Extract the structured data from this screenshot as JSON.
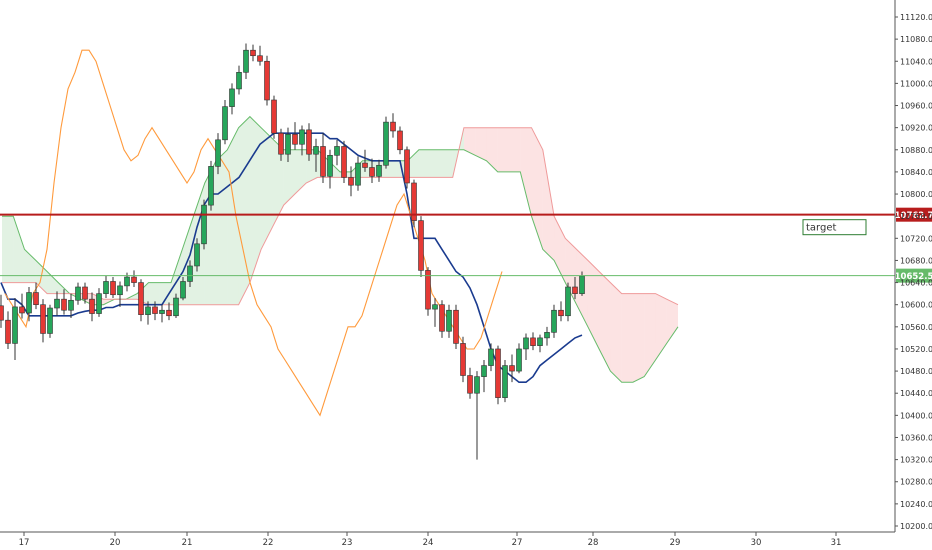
{
  "chart_data": {
    "type": "candlestick",
    "title": "",
    "xlabel": "",
    "ylabel": "",
    "ylim": [
      10180,
      11140
    ],
    "x_tick_labels": [
      "17",
      "20",
      "21",
      "22",
      "23",
      "24",
      "27",
      "28",
      "29",
      "30",
      "31"
    ],
    "y_tick_values": [
      10200,
      10240,
      10280,
      10320,
      10360,
      10400,
      10440,
      10480,
      10520,
      10560,
      10600,
      10640,
      10680,
      10720,
      10760,
      10800,
      10840,
      10880,
      10920,
      10960,
      11000,
      11040,
      11080,
      11120
    ],
    "y_tick_labels": [
      "10200.0",
      "10240.0",
      "10280.0",
      "10320.0",
      "10360.0",
      "10400.0",
      "10440.0",
      "10480.0",
      "10520.0",
      "10560.0",
      "10600.0",
      "10640.0",
      "10680.0",
      "10720.0",
      "10760.0",
      "10800.0",
      "10840.0",
      "10880.0",
      "10920.0",
      "10960.0",
      "11000.0",
      "11040.0",
      "11080.0",
      "11120.0"
    ],
    "grid": false,
    "horizontal_lines": [
      {
        "label": "10762.7",
        "value": 10762.7,
        "color": "#b71c1c"
      },
      {
        "label": "10652.5",
        "value": 10652.5,
        "color": "#66bb6a"
      }
    ],
    "annotations": [
      {
        "text": "target",
        "price": 10741
      }
    ],
    "ohlc": [
      [
        "17:00",
        10598,
        10618,
        10558,
        10572
      ],
      [
        "17:04",
        10572,
        10588,
        10520,
        10530
      ],
      [
        "17:08",
        10530,
        10612,
        10500,
        10596
      ],
      [
        "17:12",
        10596,
        10620,
        10575,
        10585
      ],
      [
        "17:16",
        10585,
        10632,
        10570,
        10622
      ],
      [
        "17:20",
        10622,
        10640,
        10592,
        10600
      ],
      [
        "17:24",
        10600,
        10610,
        10532,
        10548
      ],
      [
        "17:28",
        10548,
        10600,
        10540,
        10594
      ],
      [
        "17:32",
        10594,
        10624,
        10580,
        10610
      ],
      [
        "17:36",
        10610,
        10628,
        10582,
        10590
      ],
      [
        "17:40",
        10590,
        10620,
        10576,
        10608
      ],
      [
        "17:44",
        10608,
        10640,
        10600,
        10632
      ],
      [
        "17:48",
        10632,
        10640,
        10602,
        10610
      ],
      [
        "17:52",
        10610,
        10622,
        10570,
        10584
      ],
      [
        "17:56",
        10584,
        10630,
        10578,
        10620
      ],
      [
        "18:00",
        10620,
        10652,
        10612,
        10642
      ],
      [
        "18:04",
        10642,
        10650,
        10612,
        10618
      ],
      [
        "18:08",
        10618,
        10642,
        10596,
        10634
      ],
      [
        "18:12",
        10634,
        10658,
        10624,
        10650
      ],
      [
        "18:16",
        10650,
        10662,
        10632,
        10640
      ],
      [
        "18:20",
        10640,
        10646,
        10570,
        10582
      ],
      [
        "18:24",
        10582,
        10606,
        10564,
        10596
      ],
      [
        "18:28",
        10596,
        10606,
        10572,
        10584
      ],
      [
        "18:32",
        10584,
        10600,
        10568,
        10590
      ],
      [
        "18:36",
        10590,
        10604,
        10572,
        10580
      ],
      [
        "18:40",
        10580,
        10620,
        10576,
        10612
      ],
      [
        "18:44",
        10612,
        10650,
        10608,
        10642
      ],
      [
        "18:48",
        10642,
        10680,
        10632,
        10670
      ],
      [
        "18:52",
        10670,
        10720,
        10660,
        10710
      ],
      [
        "18:56",
        10710,
        10790,
        10700,
        10780
      ],
      [
        "19:00",
        10780,
        10860,
        10770,
        10850
      ],
      [
        "19:04",
        10850,
        10910,
        10836,
        10898
      ],
      [
        "19:08",
        10898,
        10970,
        10890,
        10958
      ],
      [
        "19:12",
        10958,
        11000,
        10944,
        10990
      ],
      [
        "19:16",
        10990,
        11032,
        10980,
        11020
      ],
      [
        "19:20",
        11020,
        11072,
        11008,
        11060
      ],
      [
        "19:24",
        11060,
        11070,
        11040,
        11050
      ],
      [
        "19:28",
        11050,
        11068,
        11032,
        11040
      ],
      [
        "19:32",
        11040,
        11050,
        10960,
        10970
      ],
      [
        "19:36",
        10970,
        10978,
        10900,
        10910
      ],
      [
        "19:40",
        10910,
        10918,
        10860,
        10872
      ],
      [
        "19:44",
        10872,
        10920,
        10858,
        10908
      ],
      [
        "19:48",
        10908,
        10930,
        10880,
        10890
      ],
      [
        "19:52",
        10890,
        10924,
        10870,
        10916
      ],
      [
        "19:56",
        10916,
        10928,
        10860,
        10872
      ],
      [
        "20:00",
        10872,
        10900,
        10840,
        10886
      ],
      [
        "20:04",
        10886,
        10910,
        10820,
        10832
      ],
      [
        "20:08",
        10832,
        10880,
        10810,
        10870
      ],
      [
        "20:12",
        10870,
        10898,
        10852,
        10886
      ],
      [
        "20:16",
        10886,
        10896,
        10820,
        10830
      ],
      [
        "20:20",
        10830,
        10850,
        10796,
        10816
      ],
      [
        "20:24",
        10816,
        10868,
        10806,
        10856
      ],
      [
        "20:28",
        10856,
        10880,
        10840,
        10848
      ],
      [
        "20:32",
        10848,
        10864,
        10820,
        10832
      ],
      [
        "20:36",
        10832,
        10862,
        10822,
        10852
      ],
      [
        "20:40",
        10852,
        10940,
        10846,
        10930
      ],
      [
        "20:44",
        10930,
        10946,
        10902,
        10914
      ],
      [
        "20:48",
        10914,
        10922,
        10872,
        10880
      ],
      [
        "20:52",
        10880,
        10886,
        10810,
        10820
      ],
      [
        "20:56",
        10820,
        10826,
        10740,
        10752
      ],
      [
        "21:00",
        10752,
        10760,
        10650,
        10662
      ],
      [
        "21:04",
        10662,
        10668,
        10580,
        10592
      ],
      [
        "21:08",
        10592,
        10612,
        10560,
        10600
      ],
      [
        "21:12",
        10600,
        10608,
        10540,
        10552
      ],
      [
        "21:16",
        10552,
        10600,
        10540,
        10590
      ],
      [
        "21:20",
        10590,
        10600,
        10520,
        10530
      ],
      [
        "21:24",
        10530,
        10542,
        10460,
        10472
      ],
      [
        "21:28",
        10472,
        10486,
        10430,
        10440
      ],
      [
        "21:32",
        10440,
        10480,
        10320,
        10470
      ],
      [
        "21:36",
        10470,
        10500,
        10442,
        10490
      ],
      [
        "21:40",
        10490,
        10530,
        10480,
        10520
      ],
      [
        "21:44",
        10520,
        10526,
        10420,
        10432
      ],
      [
        "21:48",
        10432,
        10500,
        10424,
        10490
      ],
      [
        "21:52",
        10490,
        10510,
        10460,
        10480
      ],
      [
        "21:56",
        10480,
        10530,
        10476,
        10520
      ],
      [
        "22:00",
        10520,
        10548,
        10500,
        10540
      ],
      [
        "22:04",
        10540,
        10550,
        10518,
        10526
      ],
      [
        "22:08",
        10526,
        10546,
        10514,
        10540
      ],
      [
        "22:12",
        10540,
        10560,
        10526,
        10550
      ],
      [
        "22:16",
        10550,
        10600,
        10540,
        10590
      ],
      [
        "22:20",
        10590,
        10606,
        10570,
        10580
      ],
      [
        "22:24",
        10580,
        10640,
        10570,
        10632
      ],
      [
        "22:28",
        10632,
        10650,
        10610,
        10620
      ],
      [
        "22:32",
        10620,
        10660,
        10616,
        10652
      ]
    ],
    "series": [
      {
        "name": "",
        "color": "#1a3b8f",
        "values": [
          10640,
          10610,
          10610,
          10600,
          10580,
          10580,
          10580,
          10580,
          10580,
          10580,
          10580,
          10585,
          10588,
          10590,
          10590,
          10595,
          10595,
          10600,
          10600,
          10600,
          10600,
          10600,
          10600,
          10600,
          10620,
          10640,
          10660,
          10690,
          10740,
          10780,
          10800,
          10800,
          10810,
          10820,
          10830,
          10850,
          10870,
          10890,
          10900,
          10910,
          10910,
          10910,
          10910,
          10910,
          10910,
          10910,
          10910,
          10900,
          10900,
          10890,
          10880,
          10870,
          10865,
          10860,
          10860,
          10860,
          10860,
          10860,
          10800,
          10720,
          10720,
          10720,
          10720,
          10700,
          10680,
          10660,
          10650,
          10630,
          10600,
          10560,
          10520,
          10490,
          10480,
          10470,
          10460,
          10460,
          10470,
          10490,
          10500,
          10510,
          10520,
          10530,
          10540,
          10545
        ]
      },
      {
        "name": "",
        "color": "#ff9a3c",
        "values": [
          10620,
          10600,
          10580,
          10560,
          10620,
          10640,
          10700,
          10820,
          10920,
          10990,
          11020,
          11060,
          11060,
          11040,
          11000,
          10960,
          10920,
          10880,
          10860,
          10870,
          10900,
          10920,
          10900,
          10880,
          10860,
          10840,
          10820,
          10840,
          10880,
          10900,
          10880,
          10860,
          10840,
          10760,
          10700,
          10640,
          10600,
          10580,
          10560,
          10520,
          10500,
          10480,
          10460,
          10440,
          10420,
          10400,
          10440,
          10480,
          10520,
          10560,
          10560,
          10580,
          10620,
          10660,
          10700,
          10740,
          10780,
          10800,
          10760,
          10720,
          10680,
          10620,
          10600,
          10580,
          10560,
          10540,
          10520,
          10520,
          10540,
          10580,
          10620,
          10660
        ]
      }
    ],
    "cloud": {
      "span_a": [
        10760,
        10760,
        10700,
        10680,
        10660,
        10640,
        10620,
        10610,
        10600,
        10600,
        10610,
        10610,
        10620,
        10640,
        10640,
        10640,
        10700,
        10760,
        10820,
        10860,
        10880,
        10920,
        10940,
        10920,
        10900,
        10880,
        10880,
        10880,
        10880,
        10860,
        10840,
        10840,
        10860,
        10860,
        10860,
        10860,
        10860,
        10880,
        10880,
        10880,
        10880,
        10880,
        10870,
        10860,
        10840,
        10840,
        10840,
        10760,
        10700,
        10680,
        10640,
        10600,
        10560,
        10520,
        10480,
        10460,
        10460,
        10470,
        10500,
        10530,
        10560
      ],
      "span_b": [
        10640,
        10640,
        10640,
        10640,
        10620,
        10620,
        10620,
        10620,
        10620,
        10610,
        10610,
        10610,
        10610,
        10600,
        10600,
        10600,
        10600,
        10600,
        10600,
        10600,
        10600,
        10600,
        10640,
        10700,
        10740,
        10780,
        10800,
        10820,
        10830,
        10830,
        10830,
        10830,
        10830,
        10830,
        10830,
        10830,
        10830,
        10830,
        10830,
        10830,
        10830,
        10920,
        10920,
        10920,
        10920,
        10920,
        10920,
        10920,
        10880,
        10760,
        10720,
        10700,
        10680,
        10660,
        10640,
        10620,
        10620,
        10620,
        10620,
        10610,
        10600
      ],
      "bull_color": "rgba(76,175,80,0.16)",
      "bear_color": "rgba(239,83,80,0.16)"
    }
  }
}
